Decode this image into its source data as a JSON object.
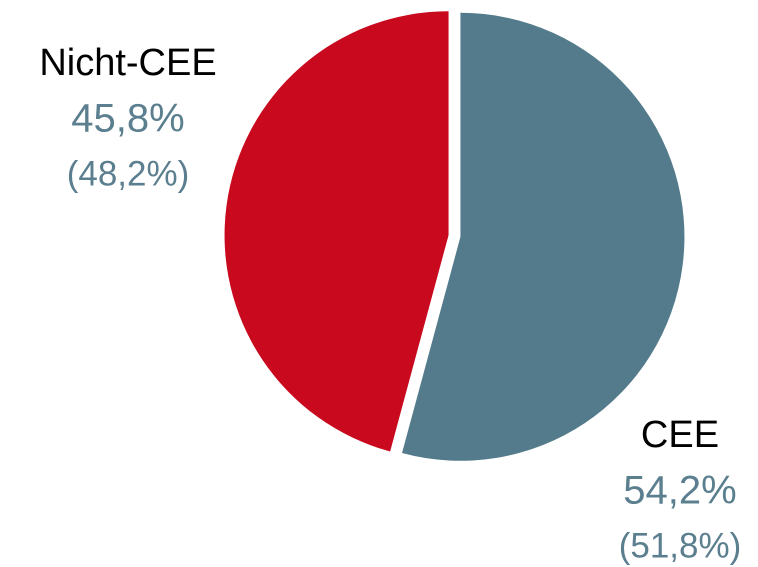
{
  "chart_data": {
    "type": "pie",
    "categories": [
      "CEE",
      "Nicht-CEE"
    ],
    "values": [
      54.2,
      45.8
    ],
    "value_labels": [
      "54,2%",
      "45,8%"
    ],
    "comparison_labels": [
      "(51,8%)",
      "(48,2%)"
    ],
    "colors": [
      "#537b8b",
      "#c8091e"
    ]
  }
}
